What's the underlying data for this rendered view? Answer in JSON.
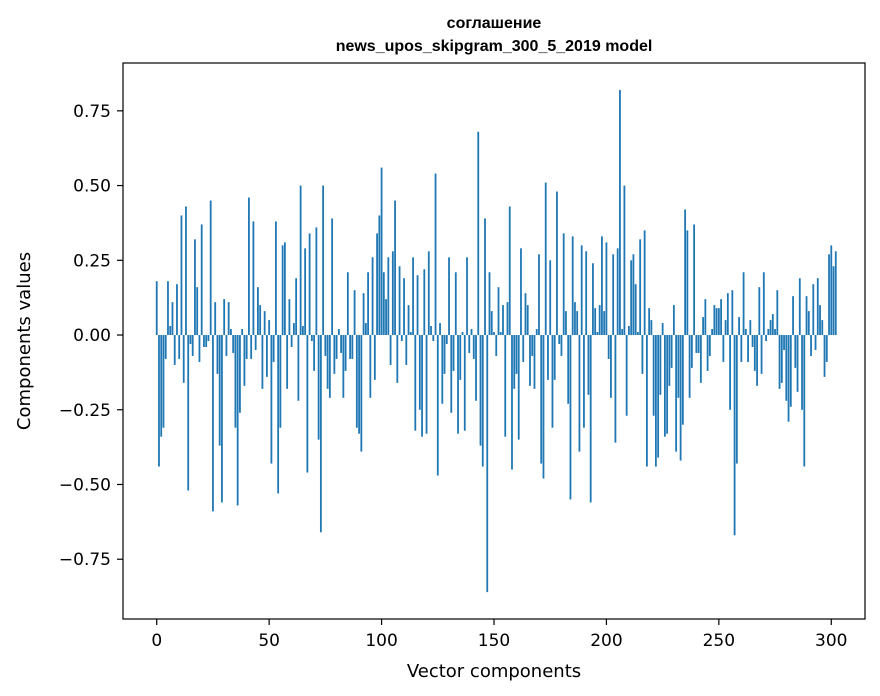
{
  "chart_data": {
    "type": "bar",
    "title": "соглашение",
    "subtitle": "news_upos_skipgram_300_5_2019 model",
    "xlabel": "Vector components",
    "ylabel": "Components values",
    "xlim": [
      -15,
      315
    ],
    "ylim": [
      -0.95,
      0.91
    ],
    "xticks": [
      0,
      50,
      100,
      150,
      200,
      250,
      300
    ],
    "yticks": [
      -0.75,
      -0.5,
      -0.25,
      0.0,
      0.25,
      0.5,
      0.75
    ],
    "ytick_labels": [
      "−0.75",
      "−0.50",
      "−0.25",
      "0.00",
      "0.25",
      "0.50",
      "0.75"
    ],
    "bar_color": "#1f77b4",
    "grid": false,
    "values": [
      0.18,
      -0.44,
      -0.34,
      -0.31,
      -0.08,
      0.18,
      0.03,
      0.11,
      -0.1,
      0.17,
      -0.08,
      0.4,
      -0.16,
      0.43,
      -0.52,
      -0.03,
      -0.07,
      0.32,
      0.16,
      -0.09,
      0.37,
      -0.04,
      -0.04,
      -0.02,
      0.45,
      -0.59,
      0.11,
      -0.13,
      -0.37,
      -0.56,
      0.12,
      -0.07,
      0.11,
      0.02,
      -0.06,
      -0.31,
      -0.57,
      -0.26,
      0.02,
      -0.17,
      -0.08,
      0.46,
      -0.08,
      0.38,
      -0.05,
      0.16,
      0.1,
      -0.18,
      0.08,
      -0.14,
      0.05,
      -0.43,
      -0.09,
      0.38,
      -0.53,
      -0.31,
      0.3,
      0.31,
      -0.18,
      0.12,
      -0.04,
      0.04,
      0.19,
      -0.22,
      0.5,
      0.03,
      0.29,
      -0.46,
      0.34,
      -0.02,
      -0.12,
      0.36,
      -0.35,
      -0.66,
      0.5,
      -0.07,
      -0.18,
      -0.21,
      0.39,
      -0.13,
      -0.08,
      0.02,
      -0.06,
      -0.21,
      -0.12,
      0.21,
      -0.08,
      -0.08,
      0.15,
      -0.31,
      -0.33,
      -0.39,
      0.14,
      0.04,
      0.21,
      -0.21,
      0.26,
      -0.15,
      0.34,
      0.4,
      0.56,
      0.21,
      0.12,
      0.26,
      -0.1,
      0.28,
      0.45,
      -0.16,
      0.23,
      -0.02,
      0.19,
      -0.1,
      0.1,
      0.01,
      0.26,
      -0.32,
      0.2,
      -0.25,
      -0.34,
      0.22,
      -0.33,
      0.28,
      0.03,
      -0.02,
      0.54,
      -0.47,
      0.04,
      -0.23,
      -0.13,
      -0.03,
      0.26,
      -0.26,
      -0.12,
      0.21,
      -0.33,
      -0.15,
      0.01,
      -0.32,
      0.26,
      -0.06,
      0.02,
      -0.08,
      -0.22,
      0.68,
      -0.37,
      -0.44,
      0.39,
      -0.86,
      0.21,
      0.08,
      0.01,
      -0.07,
      0.16,
      0.01,
      0.1,
      -0.34,
      0.11,
      0.43,
      -0.45,
      -0.18,
      -0.13,
      -0.35,
      0.29,
      -0.09,
      0.14,
      0.1,
      -0.17,
      -0.07,
      -0.18,
      0.02,
      0.27,
      -0.43,
      -0.48,
      0.51,
      -0.15,
      0.25,
      -0.31,
      -0.15,
      0.48,
      -0.03,
      -0.07,
      0.34,
      0.08,
      -0.23,
      -0.55,
      0.33,
      0.11,
      0.08,
      -0.39,
      0.3,
      -0.31,
      0.28,
      -0.2,
      -0.56,
      0.24,
      0.09,
      0.01,
      0.1,
      0.33,
      0.08,
      0.31,
      -0.08,
      -0.21,
      0.27,
      -0.36,
      0.29,
      0.82,
      0.02,
      0.5,
      -0.27,
      0.03,
      0.25,
      0.27,
      0.17,
      0.01,
      0.32,
      -0.13,
      0.35,
      -0.44,
      0.09,
      0.05,
      -0.27,
      -0.44,
      -0.41,
      -0.2,
      0.04,
      -0.34,
      -0.33,
      -0.17,
      -0.11,
      0.1,
      -0.39,
      -0.21,
      -0.42,
      -0.3,
      0.42,
      0.35,
      -0.21,
      -0.11,
      0.37,
      -0.06,
      -0.06,
      -0.16,
      0.06,
      0.12,
      -0.12,
      -0.07,
      0.02,
      0.1,
      0.09,
      0.09,
      0.12,
      -0.09,
      0.05,
      0.14,
      -0.25,
      0.15,
      -0.67,
      -0.43,
      0.06,
      -0.09,
      0.21,
      0.02,
      -0.09,
      0.05,
      -0.04,
      -0.12,
      -0.17,
      0.16,
      -0.13,
      0.21,
      -0.02,
      0.02,
      0.05,
      0.07,
      0.02,
      0.15,
      -0.18,
      -0.16,
      -0.05,
      -0.22,
      -0.29,
      -0.24,
      0.13,
      -0.11,
      -0.19,
      0.19,
      -0.25,
      -0.44,
      0.13,
      0.08,
      -0.07,
      0.17,
      -0.05,
      0.19,
      0.1,
      0.05,
      -0.14,
      -0.09,
      0.27,
      0.3,
      0.23,
      0.28
    ]
  }
}
